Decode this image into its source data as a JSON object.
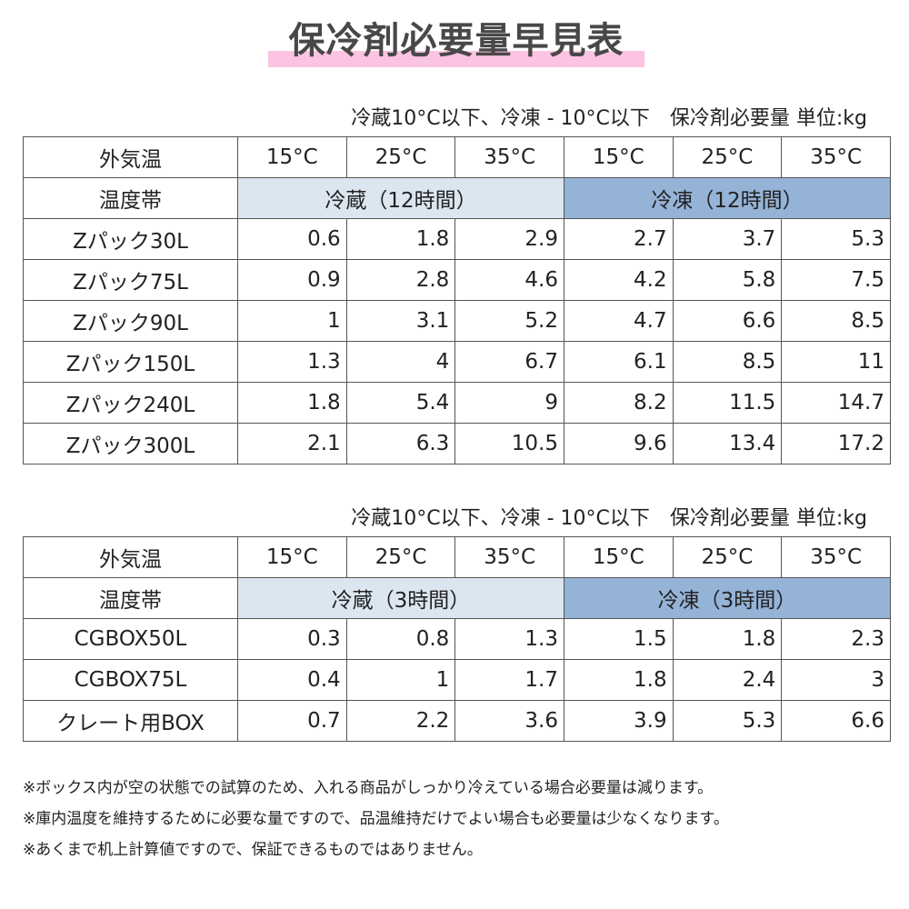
{
  "title": "保冷剤必要量早見表",
  "colors": {
    "highlight": "#fbc4e2",
    "refrigerated_band": "#dce6f1",
    "frozen_band": "#95b3d7"
  },
  "tables": [
    {
      "caption": "冷蔵10°C以下、冷凍 - 10°C以下　保冷剤必要量 単位:kg",
      "header_label": "外気温",
      "temps": [
        "15°C",
        "25°C",
        "35°C",
        "15°C",
        "25°C",
        "35°C"
      ],
      "band_label": "温度帯",
      "band_refrigerated": "冷蔵（12時間）",
      "band_frozen": "冷凍（12時間）",
      "rows": [
        {
          "name": "Zパック30L",
          "values": [
            "0.6",
            "1.8",
            "2.9",
            "2.7",
            "3.7",
            "5.3"
          ]
        },
        {
          "name": "Zパック75L",
          "values": [
            "0.9",
            "2.8",
            "4.6",
            "4.2",
            "5.8",
            "7.5"
          ]
        },
        {
          "name": "Zパック90L",
          "values": [
            "1",
            "3.1",
            "5.2",
            "4.7",
            "6.6",
            "8.5"
          ]
        },
        {
          "name": "Zパック150L",
          "values": [
            "1.3",
            "4",
            "6.7",
            "6.1",
            "8.5",
            "11"
          ]
        },
        {
          "name": "Zパック240L",
          "values": [
            "1.8",
            "5.4",
            "9",
            "8.2",
            "11.5",
            "14.7"
          ]
        },
        {
          "name": "Zパック300L",
          "values": [
            "2.1",
            "6.3",
            "10.5",
            "9.6",
            "13.4",
            "17.2"
          ]
        }
      ]
    },
    {
      "caption": "冷蔵10°C以下、冷凍 - 10°C以下　保冷剤必要量 単位:kg",
      "header_label": "外気温",
      "temps": [
        "15°C",
        "25°C",
        "35°C",
        "15°C",
        "25°C",
        "35°C"
      ],
      "band_label": "温度帯",
      "band_refrigerated": "冷蔵（3時間）",
      "band_frozen": "冷凍（3時間）",
      "rows": [
        {
          "name": "CGBOX50L",
          "values": [
            "0.3",
            "0.8",
            "1.3",
            "1.5",
            "1.8",
            "2.3"
          ]
        },
        {
          "name": "CGBOX75L",
          "values": [
            "0.4",
            "1",
            "1.7",
            "1.8",
            "2.4",
            "3"
          ]
        },
        {
          "name": "クレート用BOX",
          "values": [
            "0.7",
            "2.2",
            "3.6",
            "3.9",
            "5.3",
            "6.6"
          ]
        }
      ]
    }
  ],
  "notes": [
    "※ボックス内が空の状態での試算のため、入れる商品がしっかり冷えている場合必要量は減ります。",
    "※庫内温度を維持するために必要な量ですので、品温維持だけでよい場合も必要量は少なくなります。",
    "※あくまで机上計算値ですので、保証できるものではありません。"
  ]
}
